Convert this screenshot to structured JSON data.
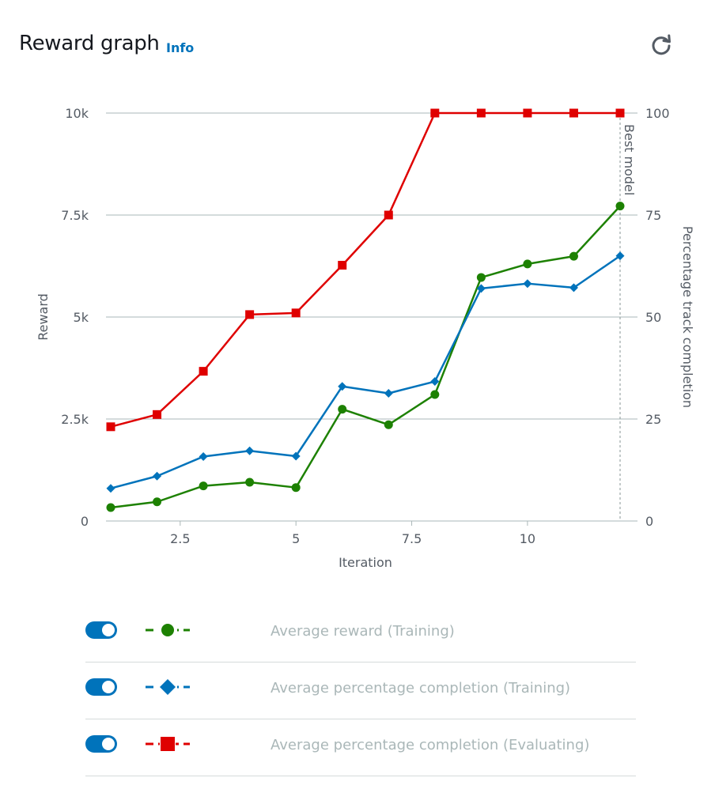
{
  "header": {
    "title": "Reward graph",
    "info_label": "Info",
    "refresh_icon": "refresh-icon"
  },
  "chart_data": {
    "type": "line",
    "x_axis": {
      "label": "Iteration",
      "range": [
        1,
        12
      ],
      "ticks": [
        2.5,
        5,
        7.5,
        10
      ],
      "tick_labels": [
        "2.5",
        "5",
        "7.5",
        "10"
      ]
    },
    "y_axis_left": {
      "label": "Reward",
      "range": [
        0,
        10000
      ],
      "ticks": [
        0,
        2500,
        5000,
        7500,
        10000
      ],
      "tick_labels": [
        "0",
        "2.5k",
        "5k",
        "7.5k",
        "10k"
      ]
    },
    "y_axis_right": {
      "label": "Percentage track completion",
      "range": [
        0,
        100
      ],
      "ticks": [
        0,
        25,
        50,
        75,
        100
      ],
      "tick_labels": [
        "0",
        "25",
        "50",
        "75",
        "100"
      ]
    },
    "grid": true,
    "annotation": {
      "label": "Best model",
      "x": 12
    },
    "x": [
      1,
      2,
      3,
      4,
      5,
      6,
      7,
      8,
      9,
      10,
      11,
      12
    ],
    "series": [
      {
        "name": "Average reward (Training)",
        "axis": "left",
        "color": "#1d8102",
        "marker": "circle",
        "values": [
          330,
          470,
          860,
          950,
          820,
          2740,
          2360,
          3100,
          5970,
          6300,
          6490,
          7720
        ]
      },
      {
        "name": "Average percentage completion (Training)",
        "axis": "right",
        "color": "#0073bb",
        "marker": "diamond",
        "values": [
          8,
          11,
          15.8,
          17.2,
          15.9,
          33,
          31.3,
          34.2,
          57,
          58.2,
          57.2,
          65
        ]
      },
      {
        "name": "Average percentage completion (Evaluating)",
        "axis": "right",
        "color": "#df0000",
        "marker": "square",
        "values": [
          23.1,
          26.1,
          36.7,
          50.6,
          51,
          62.7,
          75,
          100,
          100,
          100,
          100,
          100
        ]
      }
    ]
  },
  "legend": {
    "items": [
      {
        "label": "Average reward (Training)",
        "enabled": true
      },
      {
        "label": "Average percentage completion (Training)",
        "enabled": true
      },
      {
        "label": "Average percentage completion (Evaluating)",
        "enabled": true
      }
    ]
  }
}
